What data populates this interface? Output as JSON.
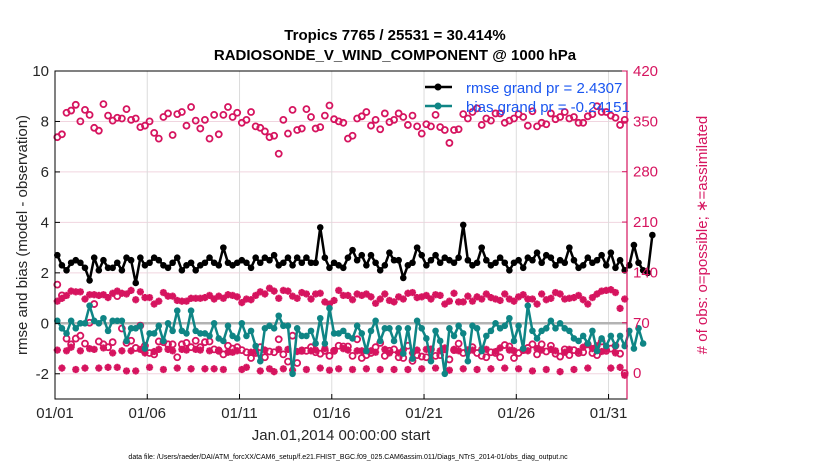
{
  "chart_data": {
    "type": "line",
    "title": "Tropics 7765 / 25531 = 30.414%",
    "subtitle": "RADIOSONDE_V_WIND_COMPONENT @ 1000 hPa",
    "xlabel": "Jan.01,2014 00:00:00 start",
    "ylabel": "rmse and bias (model - observation)",
    "ylabel_right": "# of obs: o=possible; ∗=assimilated",
    "footnote": "data file: /Users/raeder/DAI/ATM_forcXX/CAM6_setup/f.e21.FHIST_BGC.f09_025.CAM6assim.011/Diags_NTrS_2014-01/obs_diag_output.nc",
    "xlim": [
      1,
      32
    ],
    "ylim": [
      -3,
      10
    ],
    "ylim_right": [
      -36,
      420
    ],
    "x_ticks": [
      1,
      6,
      11,
      16,
      21,
      26,
      31
    ],
    "x_tick_labels": [
      "01/01",
      "01/06",
      "01/11",
      "01/16",
      "01/21",
      "01/26",
      "01/31"
    ],
    "y_ticks": [
      -2,
      0,
      2,
      4,
      6,
      8,
      10
    ],
    "y_tick_labels": [
      "-2",
      "0",
      "2",
      "4",
      "6",
      "8",
      "10"
    ],
    "y_ticks_right": [
      0,
      70,
      140,
      210,
      280,
      350,
      420
    ],
    "y_tick_labels_right": [
      "0",
      "70",
      "140",
      "210",
      "280",
      "350",
      "420"
    ],
    "grid": true,
    "zero_line": 0,
    "legend_position": "top-right",
    "legend": [
      {
        "name": "rmse grand pr = 2.4307",
        "series": "rmse"
      },
      {
        "name": "bias grand pr = -0.24151",
        "series": "bias"
      }
    ],
    "colors": {
      "rmse": "#000000",
      "bias": "#0f8585",
      "obs": "#d6145f",
      "legend_text": "#1a56f0",
      "zero_line": "#b3b3b3",
      "grid": "#f0d5df"
    },
    "x_start": 1.125,
    "x_step": 0.25,
    "series": [
      {
        "name": "rmse",
        "axis": "left",
        "values": [
          2.7,
          2.3,
          2.1,
          2.4,
          2.5,
          2.4,
          2.2,
          1.7,
          2.6,
          2.1,
          2.5,
          2.2,
          2.2,
          2.4,
          2.1,
          2.6,
          2.5,
          1.6,
          2.6,
          2.3,
          2.4,
          2.6,
          2.5,
          2.3,
          2.2,
          2.4,
          2.6,
          2.1,
          2.3,
          2.4,
          2.1,
          2.3,
          2.4,
          2.6,
          2.4,
          2.3,
          3.0,
          2.4,
          2.3,
          2.4,
          2.5,
          2.4,
          2.2,
          2.6,
          2.4,
          2.6,
          2.5,
          2.7,
          2.3,
          2.4,
          2.6,
          2.3,
          2.6,
          2.4,
          2.6,
          2.4,
          2.4,
          3.8,
          2.6,
          2.2,
          2.4,
          2.3,
          2.2,
          2.6,
          2.9,
          2.5,
          2.7,
          2.3,
          2.7,
          2.4,
          2.1,
          2.3,
          2.8,
          2.5,
          2.5,
          1.8,
          2.3,
          2.4,
          3.0,
          2.7,
          2.3,
          2.5,
          2.7,
          2.4,
          2.6,
          2.5,
          2.4,
          2.6,
          3.9,
          2.5,
          2.3,
          2.4,
          3.0,
          2.5,
          2.3,
          2.4,
          2.6,
          2.4,
          2.1,
          2.4,
          2.5,
          2.2,
          2.6,
          2.5,
          2.8,
          2.4,
          2.7,
          2.6,
          2.3,
          2.5,
          2.4,
          3.0,
          2.5,
          2.2,
          2.3,
          2.6,
          2.4,
          2.5,
          2.7,
          2.3,
          2.8,
          2.2,
          2.5,
          2.1,
          2.3,
          3.1,
          2.4,
          2.1,
          2.0,
          3.5
        ]
      },
      {
        "name": "bias",
        "axis": "left",
        "values": [
          0.1,
          -0.2,
          -0.4,
          0.1,
          -0.2,
          0.0,
          0.0,
          0.7,
          0.1,
          0.0,
          0.2,
          -0.3,
          0.1,
          0.1,
          0.1,
          -0.7,
          -0.2,
          -0.2,
          -0.1,
          -1.0,
          -0.4,
          -0.4,
          -0.1,
          -0.7,
          0.0,
          -0.3,
          0.5,
          -0.3,
          -0.4,
          0.5,
          -0.3,
          -0.4,
          -0.4,
          -0.5,
          0.0,
          -0.6,
          -0.7,
          -0.1,
          -0.5,
          -0.6,
          0.0,
          -0.5,
          -0.3,
          -0.9,
          -1.5,
          -0.2,
          -0.1,
          -0.2,
          0.3,
          -0.1,
          -0.1,
          -2.0,
          -0.2,
          -0.5,
          -0.5,
          -0.3,
          -0.8,
          0.2,
          -0.8,
          0.6,
          -0.4,
          -0.4,
          -0.3,
          -0.5,
          -0.6,
          -0.1,
          -0.4,
          -1.1,
          -0.3,
          0.1,
          -0.7,
          -0.2,
          -0.2,
          -0.7,
          -0.2,
          -1.2,
          -0.2,
          -1.4,
          0.1,
          -0.2,
          -0.6,
          -1.5,
          -0.3,
          -0.7,
          -2.0,
          -0.2,
          -0.5,
          -0.1,
          -0.4,
          -1.5,
          -0.1,
          -0.2,
          -1.1,
          -0.5,
          -0.3,
          0.0,
          -0.2,
          -0.1,
          0.2,
          -0.7,
          -0.1,
          -1.0,
          0.7,
          -0.3,
          -0.6,
          -0.3,
          -0.2,
          0.1,
          -0.2,
          0.0,
          -0.2,
          -0.3,
          -0.6,
          -0.7,
          -0.5,
          -0.8,
          -0.3,
          -1.1,
          -0.6,
          -0.9,
          -0.5,
          -0.9,
          -0.5,
          -0.9,
          -0.3,
          -1.0,
          -0.2,
          -0.8
        ]
      },
      {
        "name": "obs_possible",
        "axis": "right",
        "marker": "o",
        "values": [
          328,
          332,
          362,
          365,
          373,
          350,
          366,
          359,
          341,
          337,
          374,
          358,
          351,
          355,
          354,
          367,
          352,
          354,
          342,
          344,
          350,
          334,
          326,
          356,
          361,
          331,
          360,
          363,
          344,
          370,
          351,
          340,
          352,
          326,
          359,
          332,
          359,
          370,
          356,
          362,
          348,
          352,
          363,
          343,
          341,
          336,
          328,
          330,
          305,
          352,
          333,
          366,
          338,
          340,
          367,
          356,
          340,
          342,
          358,
          372,
          353,
          350,
          348,
          326,
          330,
          354,
          357,
          363,
          344,
          352,
          339,
          361,
          349,
          352,
          361,
          356,
          345,
          358,
          343,
          333,
          346,
          343,
          359,
          342,
          338,
          320,
          338,
          339,
          360,
          354,
          363,
          368,
          345,
          354,
          351,
          361,
          361,
          348,
          351,
          354,
          360,
          356,
          344,
          364,
          343,
          348,
          346,
          361,
          353,
          356,
          363,
          354,
          356,
          348,
          348,
          357,
          360,
          371,
          363,
          363,
          358,
          355,
          345,
          352
        ]
      },
      {
        "name": "obs_assimilated",
        "axis": "right",
        "marker": "*",
        "values": [
          100,
          104,
          108,
          114,
          113,
          113,
          103,
          109,
          109,
          108,
          109,
          105,
          111,
          114,
          111,
          110,
          115,
          102,
          113,
          105,
          105,
          96,
          100,
          112,
          107,
          107,
          101,
          100,
          100,
          104,
          104,
          104,
          105,
          108,
          103,
          107,
          104,
          109,
          108,
          106,
          98,
          103,
          102,
          108,
          113,
          110,
          118,
          114,
          104,
          115,
          114,
          107,
          104,
          112,
          110,
          103,
          110,
          111,
          99,
          96,
          101,
          115,
          108,
          108,
          102,
          110,
          108,
          110,
          106,
          97,
          103,
          110,
          101,
          99,
          106,
          103,
          111,
          112,
          105,
          106,
          108,
          103,
          109,
          108,
          96,
          100,
          111,
          99,
          99,
          107,
          100,
          106,
          103,
          110,
          105,
          103,
          101,
          110,
          103,
          100,
          106,
          109,
          103,
          103,
          96,
          110,
          102,
          104,
          112,
          110,
          103,
          104,
          105,
          108,
          102,
          96,
          105,
          110,
          114,
          115,
          116,
          112,
          90,
          103
        ]
      },
      {
        "name": "obs_possible_low",
        "axis": "right",
        "marker": "o",
        "values": [
          123,
          108,
          48,
          40,
          48,
          52,
          41,
          70,
          96,
          44,
          40,
          36,
          43,
          107,
          62,
          42,
          45,
          35,
          66,
          38,
          28,
          26,
          44,
          43,
          40,
          40,
          22,
          40,
          42,
          36,
          45,
          36,
          43,
          44,
          33,
          31,
          26,
          38,
          34,
          36,
          32,
          29,
          21,
          28,
          36,
          22,
          30,
          29,
          47,
          26,
          16,
          52,
          14,
          31,
          31,
          36,
          29,
          27,
          31,
          24,
          31,
          38,
          37,
          37,
          24,
          47,
          21,
          25,
          28,
          36,
          42,
          24,
          31,
          33,
          22,
          21,
          38,
          17,
          25,
          23,
          22,
          33,
          24,
          25,
          33,
          19,
          32,
          41,
          28,
          32,
          36,
          28,
          24,
          22,
          29,
          28,
          22,
          39,
          37,
          21,
          28,
          32,
          35,
          40,
          26,
          40,
          30,
          38,
          27,
          23,
          33,
          25,
          32,
          28,
          29,
          40,
          28,
          25,
          44,
          31,
          34,
          38,
          27,
          0
        ]
      },
      {
        "name": "obs_assimilated_low",
        "axis": "right",
        "marker": "*",
        "values": [
          32,
          7,
          31,
          36,
          5,
          31,
          7,
          34,
          33,
          7,
          35,
          8,
          28,
          8,
          31,
          3,
          31,
          3,
          33,
          28,
          8,
          30,
          33,
          5,
          33,
          31,
          7,
          33,
          32,
          6,
          33,
          32,
          6,
          31,
          6,
          32,
          5,
          29,
          29,
          31,
          5,
          8,
          29,
          30,
          3,
          32,
          6,
          2,
          33,
          6,
          33,
          4,
          30,
          32,
          5,
          31,
          32,
          7,
          34,
          4,
          31,
          6,
          34,
          32,
          5,
          31,
          31,
          6,
          31,
          29,
          5,
          33,
          28,
          5,
          28,
          32,
          5,
          28,
          32,
          6,
          33,
          33,
          7,
          31,
          35,
          4,
          33,
          31,
          6,
          30,
          32,
          5,
          33,
          33,
          6,
          30,
          35,
          7,
          32,
          31,
          6,
          32,
          31,
          3,
          34,
          32,
          5,
          33,
          31,
          2,
          29,
          33,
          5,
          30,
          36,
          7,
          34,
          38,
          30,
          33,
          7,
          28,
          8,
          -3
        ]
      }
    ]
  }
}
